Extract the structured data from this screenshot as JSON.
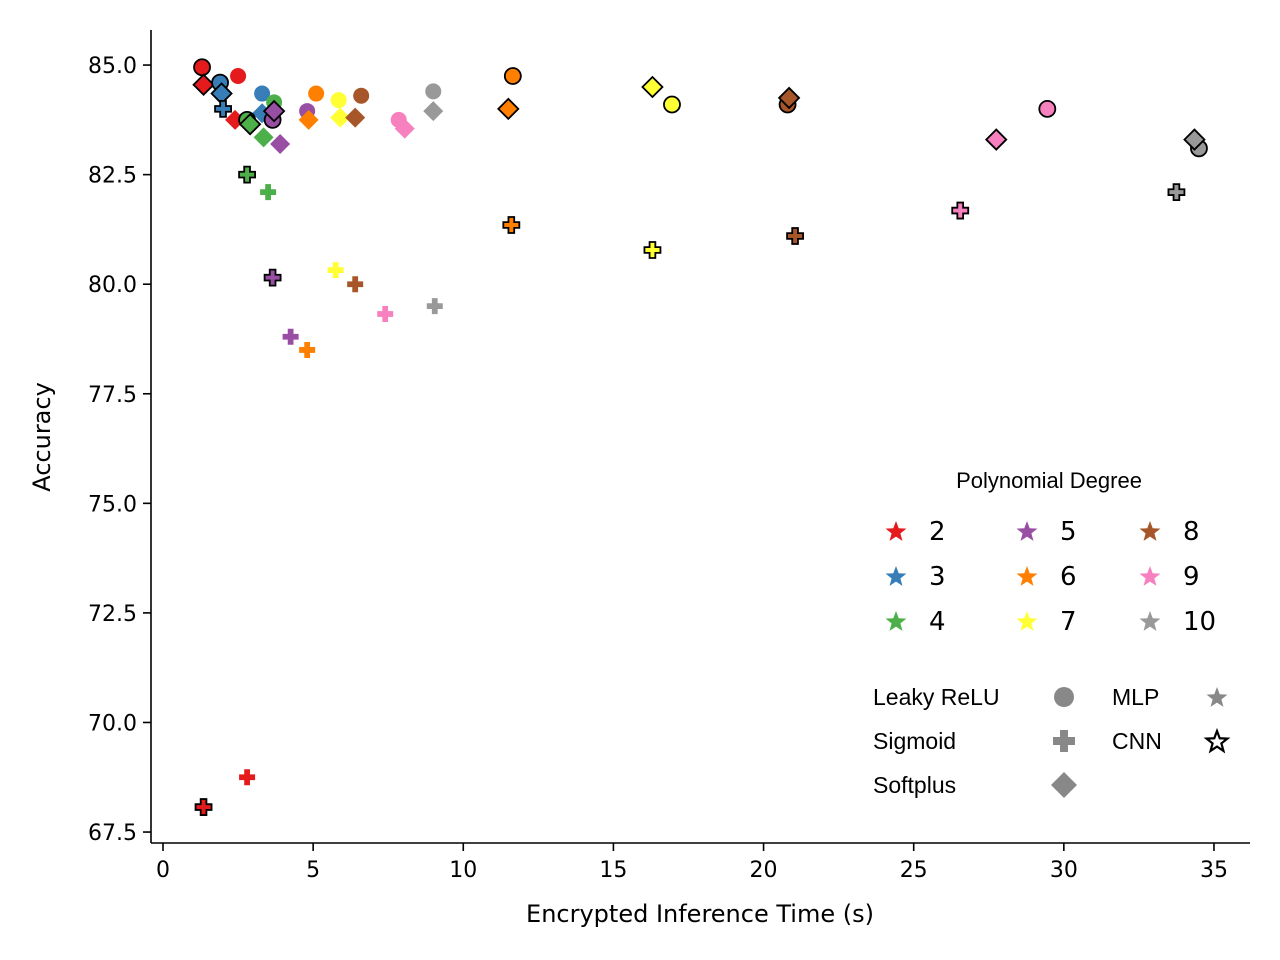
{
  "chart_data": {
    "type": "scatter",
    "title": "",
    "xlabel": "Encrypted Inference Time (s)",
    "ylabel": "Accuracy",
    "xlim": [
      -0.4,
      36.2
    ],
    "ylim": [
      67.25,
      85.8
    ],
    "xticks": [
      "0",
      "5",
      "10",
      "15",
      "20",
      "25",
      "30",
      "35"
    ],
    "xtick_values": [
      0,
      5,
      10,
      15,
      20,
      25,
      30,
      35
    ],
    "yticks": [
      "67.5",
      "70.0",
      "72.5",
      "75.0",
      "77.5",
      "80.0",
      "82.5",
      "85.0"
    ],
    "ytick_values": [
      67.5,
      70.0,
      72.5,
      75.0,
      77.5,
      80.0,
      82.5,
      85.0
    ],
    "grid": false,
    "degree_colors": {
      "2": "#e41a1c",
      "3": "#377eb8",
      "4": "#4daf4a",
      "5": "#984ea3",
      "6": "#ff7f00",
      "7": "#ffff33",
      "8": "#a65628",
      "9": "#f781bf",
      "10": "#999999"
    },
    "legend_degree": {
      "title": "Polynomial Degree",
      "placement": "lower-right",
      "items": [
        {
          "label": "2",
          "degree": "2"
        },
        {
          "label": "3",
          "degree": "3"
        },
        {
          "label": "4",
          "degree": "4"
        },
        {
          "label": "5",
          "degree": "5"
        },
        {
          "label": "6",
          "degree": "6"
        },
        {
          "label": "7",
          "degree": "7"
        },
        {
          "label": "8",
          "degree": "8"
        },
        {
          "label": "9",
          "degree": "9"
        },
        {
          "label": "10",
          "degree": "10"
        }
      ]
    },
    "legend_activation": [
      {
        "label": "Leaky ReLU",
        "marker": "circle"
      },
      {
        "label": "Sigmoid",
        "marker": "plus"
      },
      {
        "label": "Softplus",
        "marker": "diamond"
      }
    ],
    "legend_model": [
      {
        "label": "MLP",
        "edge": false
      },
      {
        "label": "CNN",
        "edge": true
      }
    ],
    "points": [
      {
        "x": 1.3,
        "y": 84.95,
        "degree": "2",
        "activation": "circle",
        "model": "CNN"
      },
      {
        "x": 1.35,
        "y": 84.55,
        "degree": "2",
        "activation": "diamond",
        "model": "CNN"
      },
      {
        "x": 2.5,
        "y": 84.75,
        "degree": "2",
        "activation": "circle",
        "model": "MLP"
      },
      {
        "x": 2.4,
        "y": 83.75,
        "degree": "2",
        "activation": "diamond",
        "model": "MLP"
      },
      {
        "x": 1.35,
        "y": 68.07,
        "degree": "2",
        "activation": "plus",
        "model": "CNN"
      },
      {
        "x": 2.8,
        "y": 68.75,
        "degree": "2",
        "activation": "plus",
        "model": "MLP"
      },
      {
        "x": 1.9,
        "y": 84.6,
        "degree": "3",
        "activation": "circle",
        "model": "CNN"
      },
      {
        "x": 1.95,
        "y": 84.35,
        "degree": "3",
        "activation": "diamond",
        "model": "CNN"
      },
      {
        "x": 2.0,
        "y": 84.0,
        "degree": "3",
        "activation": "plus",
        "model": "CNN"
      },
      {
        "x": 3.3,
        "y": 84.35,
        "degree": "3",
        "activation": "circle",
        "model": "MLP"
      },
      {
        "x": 3.3,
        "y": 83.9,
        "degree": "3",
        "activation": "diamond",
        "model": "MLP"
      },
      {
        "x": 2.8,
        "y": 83.75,
        "degree": "4",
        "activation": "circle",
        "model": "CNN"
      },
      {
        "x": 2.9,
        "y": 83.65,
        "degree": "4",
        "activation": "diamond",
        "model": "CNN"
      },
      {
        "x": 2.8,
        "y": 82.5,
        "degree": "4",
        "activation": "plus",
        "model": "CNN"
      },
      {
        "x": 3.7,
        "y": 84.15,
        "degree": "4",
        "activation": "circle",
        "model": "MLP"
      },
      {
        "x": 3.35,
        "y": 83.35,
        "degree": "4",
        "activation": "diamond",
        "model": "MLP"
      },
      {
        "x": 3.5,
        "y": 82.1,
        "degree": "4",
        "activation": "plus",
        "model": "MLP"
      },
      {
        "x": 3.65,
        "y": 83.75,
        "degree": "5",
        "activation": "circle",
        "model": "CNN"
      },
      {
        "x": 3.7,
        "y": 83.95,
        "degree": "5",
        "activation": "diamond",
        "model": "CNN"
      },
      {
        "x": 3.65,
        "y": 80.15,
        "degree": "5",
        "activation": "plus",
        "model": "CNN"
      },
      {
        "x": 4.8,
        "y": 83.95,
        "degree": "5",
        "activation": "circle",
        "model": "MLP"
      },
      {
        "x": 3.9,
        "y": 83.2,
        "degree": "5",
        "activation": "diamond",
        "model": "MLP"
      },
      {
        "x": 4.25,
        "y": 78.8,
        "degree": "5",
        "activation": "plus",
        "model": "MLP"
      },
      {
        "x": 11.65,
        "y": 84.75,
        "degree": "6",
        "activation": "circle",
        "model": "CNN"
      },
      {
        "x": 11.5,
        "y": 84.0,
        "degree": "6",
        "activation": "diamond",
        "model": "CNN"
      },
      {
        "x": 11.6,
        "y": 81.35,
        "degree": "6",
        "activation": "plus",
        "model": "CNN"
      },
      {
        "x": 5.1,
        "y": 84.35,
        "degree": "6",
        "activation": "circle",
        "model": "MLP"
      },
      {
        "x": 4.85,
        "y": 83.75,
        "degree": "6",
        "activation": "diamond",
        "model": "MLP"
      },
      {
        "x": 4.8,
        "y": 78.5,
        "degree": "6",
        "activation": "plus",
        "model": "MLP"
      },
      {
        "x": 16.95,
        "y": 84.1,
        "degree": "7",
        "activation": "circle",
        "model": "CNN"
      },
      {
        "x": 16.3,
        "y": 84.5,
        "degree": "7",
        "activation": "diamond",
        "model": "CNN"
      },
      {
        "x": 16.3,
        "y": 80.78,
        "degree": "7",
        "activation": "plus",
        "model": "CNN"
      },
      {
        "x": 5.85,
        "y": 84.2,
        "degree": "7",
        "activation": "circle",
        "model": "MLP"
      },
      {
        "x": 5.9,
        "y": 83.8,
        "degree": "7",
        "activation": "diamond",
        "model": "MLP"
      },
      {
        "x": 5.75,
        "y": 80.32,
        "degree": "7",
        "activation": "plus",
        "model": "MLP"
      },
      {
        "x": 20.8,
        "y": 84.1,
        "degree": "8",
        "activation": "circle",
        "model": "CNN"
      },
      {
        "x": 20.85,
        "y": 84.25,
        "degree": "8",
        "activation": "diamond",
        "model": "CNN"
      },
      {
        "x": 21.05,
        "y": 81.1,
        "degree": "8",
        "activation": "plus",
        "model": "CNN"
      },
      {
        "x": 6.6,
        "y": 84.3,
        "degree": "8",
        "activation": "circle",
        "model": "MLP"
      },
      {
        "x": 6.4,
        "y": 83.8,
        "degree": "8",
        "activation": "diamond",
        "model": "MLP"
      },
      {
        "x": 6.4,
        "y": 80.0,
        "degree": "8",
        "activation": "plus",
        "model": "MLP"
      },
      {
        "x": 29.45,
        "y": 84.0,
        "degree": "9",
        "activation": "circle",
        "model": "CNN"
      },
      {
        "x": 27.75,
        "y": 83.3,
        "degree": "9",
        "activation": "diamond",
        "model": "CNN"
      },
      {
        "x": 26.55,
        "y": 81.68,
        "degree": "9",
        "activation": "plus",
        "model": "CNN"
      },
      {
        "x": 7.85,
        "y": 83.75,
        "degree": "9",
        "activation": "circle",
        "model": "MLP"
      },
      {
        "x": 8.05,
        "y": 83.55,
        "degree": "9",
        "activation": "diamond",
        "model": "MLP"
      },
      {
        "x": 7.4,
        "y": 79.32,
        "degree": "9",
        "activation": "plus",
        "model": "MLP"
      },
      {
        "x": 34.5,
        "y": 83.1,
        "degree": "10",
        "activation": "circle",
        "model": "CNN"
      },
      {
        "x": 34.35,
        "y": 83.3,
        "degree": "10",
        "activation": "diamond",
        "model": "CNN"
      },
      {
        "x": 33.75,
        "y": 82.1,
        "degree": "10",
        "activation": "plus",
        "model": "CNN"
      },
      {
        "x": 9.0,
        "y": 84.4,
        "degree": "10",
        "activation": "circle",
        "model": "MLP"
      },
      {
        "x": 9.0,
        "y": 83.95,
        "degree": "10",
        "activation": "diamond",
        "model": "MLP"
      },
      {
        "x": 9.05,
        "y": 79.5,
        "degree": "10",
        "activation": "plus",
        "model": "MLP"
      }
    ]
  }
}
